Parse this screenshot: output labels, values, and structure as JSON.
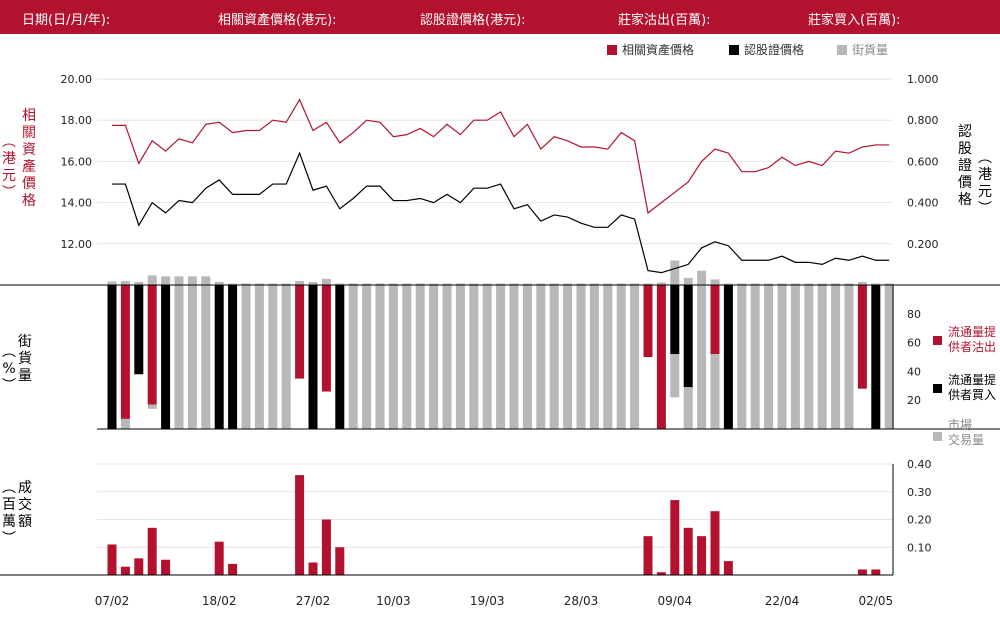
{
  "header": {
    "date": "日期(日/月/年):",
    "underlying_price": "相關資產價格(港元):",
    "warrant_price": "認股證價格(港元):",
    "issuer_sell": "莊家沽出(百萬):",
    "issuer_buy": "莊家買入(百萬):"
  },
  "legend": {
    "underlying": "相關資產價格",
    "warrant": "認股證價格",
    "outstanding": "街貨量"
  },
  "colors": {
    "underlying": "#b3122e",
    "warrant": "#000000",
    "grey": "#b8b8b8",
    "header": "#b3122e"
  },
  "axis_labels": {
    "left_top": "相關資產價格",
    "left_top_unit": "港元",
    "right_top": "認股證價格",
    "right_top_unit": "港元",
    "left_mid": "街貨量",
    "left_mid_unit": "%",
    "left_bottom": "成交額",
    "left_bottom_unit": "百萬"
  },
  "mid_legend": {
    "issuer_sell": [
      "流通量提",
      "供者沽出"
    ],
    "issuer_buy": [
      "流通量提",
      "供者買入"
    ],
    "market": [
      "市場",
      "交易量"
    ]
  },
  "chart_data": {
    "type": "line",
    "x_ticks": [
      "07/02",
      "18/02",
      "27/02",
      "10/03",
      "19/03",
      "28/03",
      "09/04",
      "22/04",
      "02/05"
    ],
    "x_tick_index": [
      0,
      8,
      15,
      21,
      28,
      35,
      42,
      50,
      57
    ],
    "top_left_ticks": [
      "20.00",
      "18.00",
      "16.00",
      "14.00",
      "12.00"
    ],
    "top_left_range": [
      10.0,
      20.0
    ],
    "top_right_ticks": [
      "1.000",
      "0.800",
      "0.600",
      "0.400",
      "0.200"
    ],
    "top_right_range": [
      0.0,
      1.0
    ],
    "underlying_price": [
      17.75,
      17.75,
      15.9,
      17.0,
      16.5,
      17.1,
      16.9,
      17.8,
      17.9,
      17.4,
      17.5,
      17.5,
      18.0,
      17.9,
      19.0,
      17.5,
      17.9,
      16.9,
      17.4,
      18.0,
      17.9,
      17.2,
      17.3,
      17.6,
      17.2,
      17.8,
      17.3,
      18.0,
      18.0,
      18.4,
      17.2,
      17.8,
      16.6,
      17.2,
      17.0,
      16.7,
      16.7,
      16.6,
      17.4,
      17.0,
      13.5,
      14.0,
      14.5,
      15.0,
      16.0,
      16.6,
      16.4,
      15.5,
      15.5,
      15.7,
      16.2,
      15.8,
      16.0,
      15.8,
      16.5,
      16.4,
      16.7,
      16.8,
      16.8
    ],
    "warrant_price": [
      0.49,
      0.49,
      0.29,
      0.4,
      0.35,
      0.41,
      0.4,
      0.47,
      0.51,
      0.44,
      0.44,
      0.44,
      0.49,
      0.49,
      0.64,
      0.46,
      0.48,
      0.37,
      0.42,
      0.48,
      0.48,
      0.41,
      0.41,
      0.42,
      0.4,
      0.44,
      0.4,
      0.47,
      0.47,
      0.49,
      0.37,
      0.39,
      0.31,
      0.34,
      0.33,
      0.3,
      0.28,
      0.28,
      0.34,
      0.32,
      0.07,
      0.06,
      0.08,
      0.1,
      0.18,
      0.21,
      0.19,
      0.12,
      0.12,
      0.12,
      0.14,
      0.11,
      0.11,
      0.1,
      0.13,
      0.12,
      0.14,
      0.12,
      0.12
    ],
    "outstanding_volume_pct": [
      7,
      8,
      6,
      19,
      17,
      17,
      17,
      17,
      6,
      3,
      3,
      3,
      3,
      3,
      8,
      6,
      12,
      3,
      3,
      3,
      3,
      3,
      3,
      3,
      3,
      3,
      3,
      3,
      3,
      3,
      3,
      3,
      3,
      3,
      3,
      3,
      3,
      3,
      3,
      3,
      3,
      5,
      48,
      14,
      28,
      11,
      3,
      3,
      3,
      3,
      3,
      3,
      3,
      3,
      3,
      3,
      6,
      3,
      3
    ],
    "mid_right_ticks": [
      "80",
      "60",
      "40",
      "20"
    ],
    "mid_range": [
      0,
      100
    ],
    "issuer_sell_pct": [
      0,
      93,
      0,
      83,
      0,
      0,
      0,
      0,
      0,
      0,
      0,
      0,
      0,
      0,
      65,
      0,
      74,
      0,
      0,
      0,
      0,
      0,
      0,
      0,
      0,
      0,
      0,
      0,
      0,
      0,
      0,
      0,
      0,
      0,
      0,
      0,
      0,
      0,
      0,
      0,
      50,
      100,
      0,
      0,
      0,
      48,
      0,
      0,
      0,
      0,
      0,
      0,
      0,
      0,
      0,
      0,
      72,
      0,
      0
    ],
    "issuer_buy_pct": [
      100,
      0,
      62,
      0,
      100,
      0,
      0,
      0,
      100,
      100,
      0,
      0,
      0,
      0,
      0,
      100,
      0,
      100,
      0,
      0,
      0,
      0,
      0,
      0,
      0,
      0,
      0,
      0,
      0,
      0,
      0,
      0,
      0,
      0,
      0,
      0,
      0,
      0,
      0,
      0,
      0,
      0,
      48,
      71,
      0,
      0,
      100,
      0,
      0,
      0,
      0,
      0,
      0,
      0,
      0,
      0,
      0,
      100,
      0
    ],
    "market_pct": [
      0,
      7,
      0,
      3,
      0,
      100,
      100,
      100,
      0,
      0,
      100,
      100,
      100,
      100,
      0,
      0,
      0,
      0,
      100,
      100,
      100,
      100,
      100,
      100,
      100,
      100,
      100,
      100,
      100,
      100,
      100,
      100,
      100,
      100,
      100,
      100,
      100,
      100,
      100,
      100,
      0,
      0,
      30,
      29,
      100,
      52,
      0,
      100,
      100,
      100,
      100,
      100,
      100,
      100,
      100,
      100,
      0,
      0,
      100
    ],
    "bottom_right_ticks": [
      "0.40",
      "0.30",
      "0.20",
      "0.10"
    ],
    "bottom_range": [
      0.0,
      0.4
    ],
    "turnover": [
      0.11,
      0.03,
      0.06,
      0.17,
      0.055,
      0,
      0,
      0,
      0.12,
      0.04,
      0,
      0,
      0,
      0,
      0.36,
      0.045,
      0.2,
      0.1,
      0,
      0,
      0,
      0,
      0,
      0,
      0,
      0,
      0,
      0,
      0,
      0,
      0,
      0,
      0,
      0,
      0,
      0,
      0,
      0,
      0,
      0,
      0.14,
      0.01,
      0.27,
      0.17,
      0.14,
      0.23,
      0.05,
      0,
      0,
      0,
      0,
      0,
      0,
      0,
      0,
      0,
      0.02,
      0.02,
      0
    ]
  }
}
